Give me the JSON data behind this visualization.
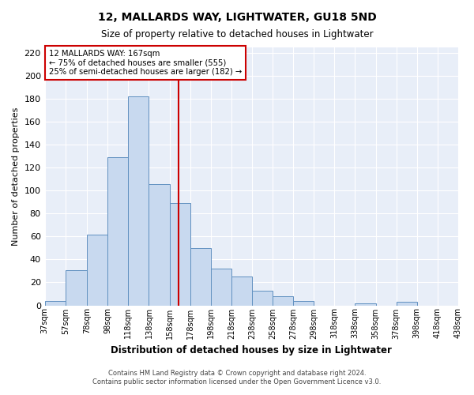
{
  "title1": "12, MALLARDS WAY, LIGHTWATER, GU18 5ND",
  "title2": "Size of property relative to detached houses in Lightwater",
  "xlabel": "Distribution of detached houses by size in Lightwater",
  "ylabel": "Number of detached properties",
  "bar_color": "#c8d9ef",
  "bar_edge_color": "#6090c0",
  "background_color": "#e8eef8",
  "grid_color": "#ffffff",
  "bins": [
    37,
    57,
    78,
    98,
    118,
    138,
    158,
    178,
    198,
    218,
    238,
    258,
    278,
    298,
    318,
    338,
    358,
    378,
    398,
    418,
    438
  ],
  "bin_labels": [
    "37sqm",
    "57sqm",
    "78sqm",
    "98sqm",
    "118sqm",
    "138sqm",
    "158sqm",
    "178sqm",
    "198sqm",
    "218sqm",
    "238sqm",
    "258sqm",
    "278sqm",
    "298sqm",
    "318sqm",
    "338sqm",
    "358sqm",
    "378sqm",
    "398sqm",
    "418sqm",
    "438sqm"
  ],
  "values": [
    4,
    31,
    62,
    129,
    182,
    106,
    89,
    50,
    32,
    25,
    13,
    8,
    4,
    0,
    0,
    2,
    0,
    3,
    0,
    0
  ],
  "property_value": 167,
  "property_label": "12 MALLARDS WAY: 167sqm",
  "annotation_line1": "← 75% of detached houses are smaller (555)",
  "annotation_line2": "25% of semi-detached houses are larger (182) →",
  "vline_color": "#cc0000",
  "annotation_box_edge": "#cc0000",
  "ylim": [
    0,
    225
  ],
  "yticks": [
    0,
    20,
    40,
    60,
    80,
    100,
    120,
    140,
    160,
    180,
    200,
    220
  ],
  "footnote1": "Contains HM Land Registry data © Crown copyright and database right 2024.",
  "footnote2": "Contains public sector information licensed under the Open Government Licence v3.0."
}
